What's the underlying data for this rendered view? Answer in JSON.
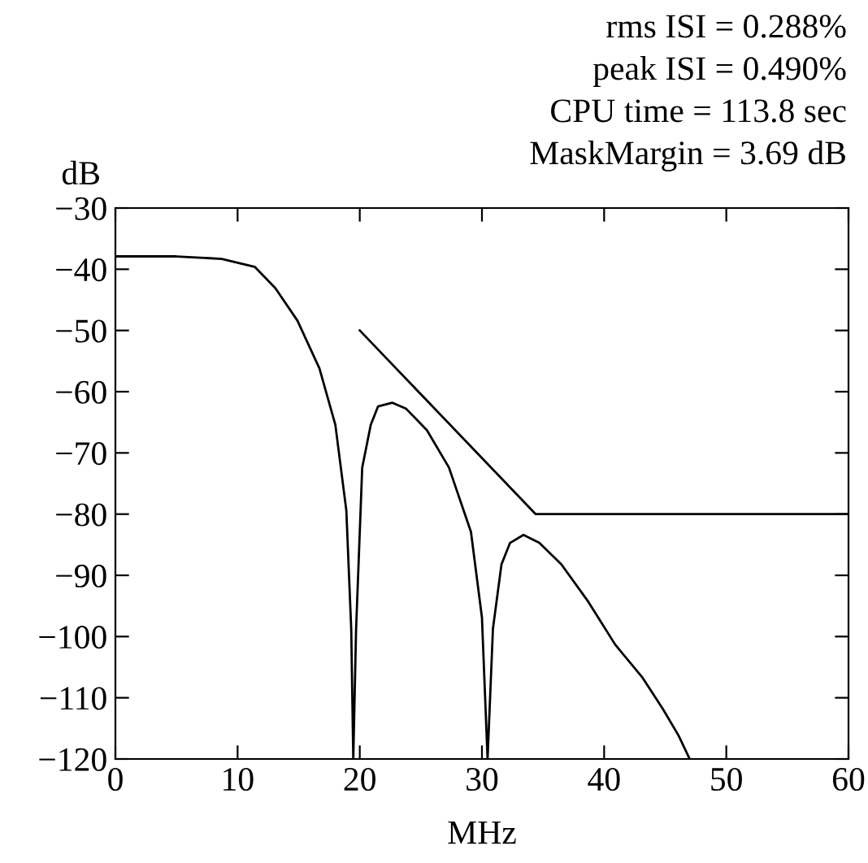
{
  "chart_data": {
    "type": "line",
    "xlabel": "MHz",
    "ylabel": "dB",
    "annotations": [
      "rms ISI = 0.288%",
      "peak ISI = 0.490%",
      "CPU time = 113.8 sec",
      "MaskMargin = 3.69 dB"
    ],
    "series": [
      {
        "color": "#000000",
        "x": [
          0,
          5,
          8.7,
          11.4,
          13.1,
          14.9,
          16.7,
          18.0,
          18.9,
          19.3,
          19.47,
          19.7,
          20.2,
          20.9,
          21.5,
          22.65,
          23.8,
          25.5,
          27.3,
          29.1,
          30.0,
          30.46,
          30.9,
          31.6,
          32.3,
          33.4,
          34.7,
          36.5,
          38.7,
          40.9,
          43.1,
          44.8,
          46.1,
          47.0
        ],
        "values": [
          -37.9,
          -37.9,
          -38.3,
          -39.6,
          -43.1,
          -48.4,
          -56.2,
          -65.4,
          -79.4,
          -98.7,
          -120,
          -98.7,
          -72.4,
          -65.4,
          -62.4,
          -61.8,
          -62.8,
          -66.3,
          -72.4,
          -82.9,
          -96.9,
          -120,
          -98.7,
          -88.2,
          -84.7,
          -83.4,
          -84.7,
          -88.2,
          -94.3,
          -101.3,
          -106.6,
          -111.8,
          -116.2,
          -120
        ]
      },
      {
        "color": "#000000",
        "x": [
          20,
          34.4,
          60
        ],
        "values": [
          -50,
          -80,
          -80
        ]
      }
    ],
    "xlim": [
      0,
      60
    ],
    "xticks": [
      0,
      10,
      20,
      30,
      40,
      50,
      60
    ],
    "ylim": [
      -120,
      -30
    ],
    "yticks": [
      -120,
      -110,
      -100,
      -90,
      -80,
      -70,
      -60,
      -50,
      -40,
      -30
    ],
    "grid": false,
    "legend": false,
    "marker": "none",
    "line_style": "solid"
  }
}
